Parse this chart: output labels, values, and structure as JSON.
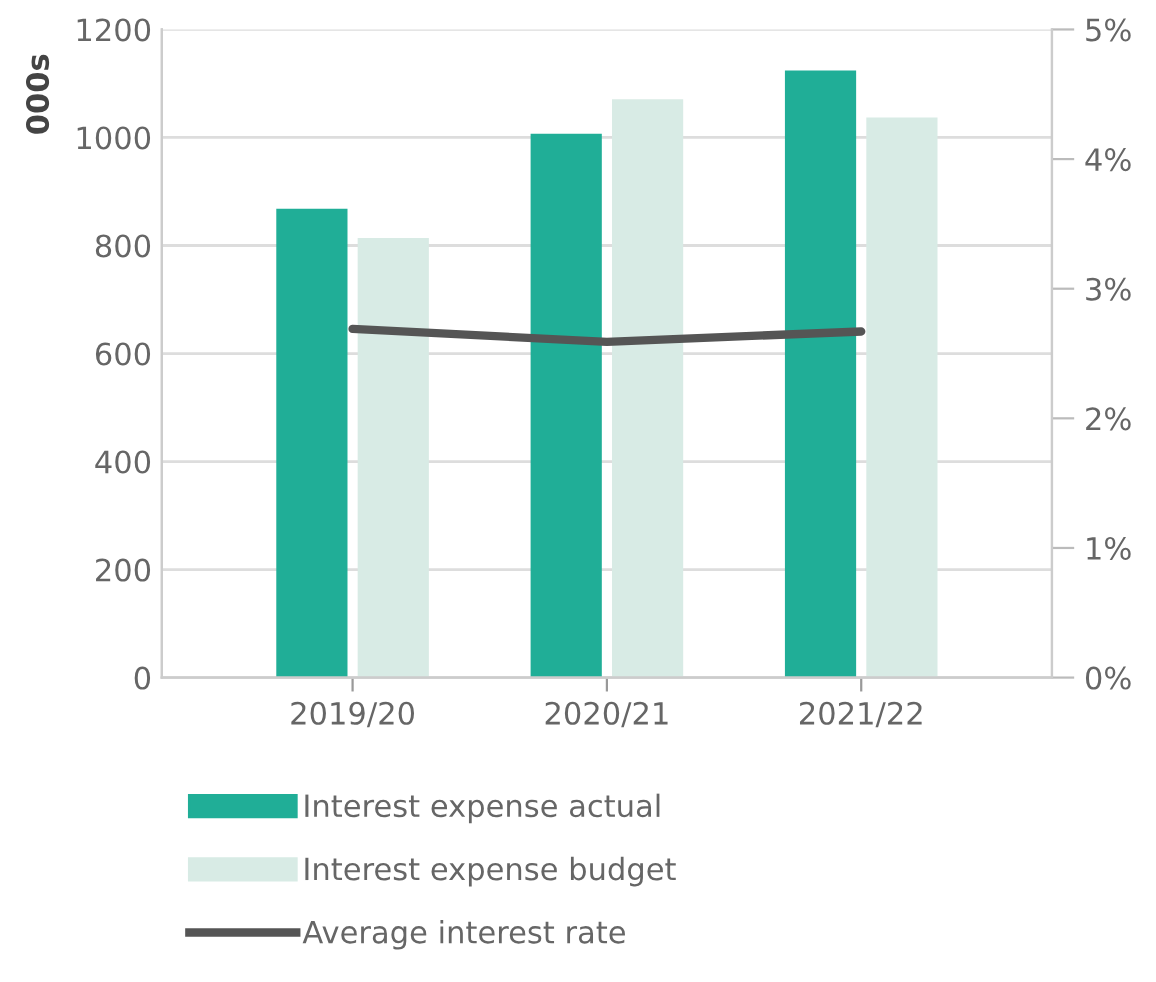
{
  "chart_data": {
    "type": "bar",
    "ylabel": "000s",
    "categories": [
      "2019/20",
      "2020/21",
      "2021/22"
    ],
    "series": [
      {
        "name": "Interest expense actual",
        "color": "#20ae97",
        "values": [
          868,
          1007,
          1124
        ]
      },
      {
        "name": "Interest expense budget",
        "color": "#d8ebe5",
        "values": [
          814,
          1071,
          1037
        ]
      },
      {
        "name": "Average interest rate",
        "type": "line",
        "axis": "y2",
        "color": "#555555",
        "values": [
          2.69,
          2.59,
          2.67
        ]
      }
    ],
    "ylim": [
      0,
      1200
    ],
    "yticks": [
      0,
      200,
      400,
      600,
      800,
      1000,
      1200
    ],
    "y2lim": [
      0,
      5
    ],
    "y2ticks": [
      {
        "value": 0,
        "label": "0%"
      },
      {
        "value": 1,
        "label": "1%"
      },
      {
        "value": 2,
        "label": "2%"
      },
      {
        "value": 3,
        "label": "3%"
      },
      {
        "value": 4,
        "label": "4%"
      },
      {
        "value": 5,
        "label": "5%"
      }
    ],
    "grid": "y",
    "legend": "bottom left",
    "marker": "none",
    "line_style": "solid"
  }
}
